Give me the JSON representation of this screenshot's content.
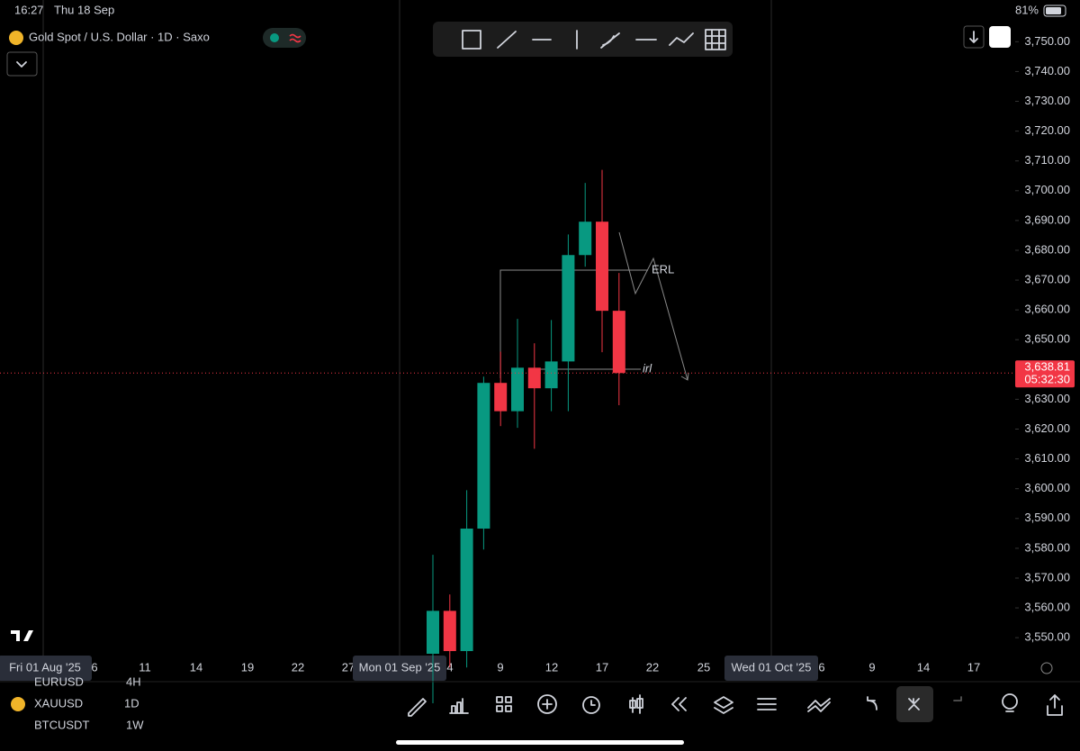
{
  "status_bar": {
    "time": "16:27",
    "date": "Thu 18 Sep",
    "battery": "81%"
  },
  "header": {
    "title": "Gold Spot / U.S. Dollar · 1D · Saxo"
  },
  "chart_data": {
    "type": "candlestick",
    "open": [
      3544.6,
      3559,
      3545.5,
      3586.6,
      3635.5,
      3626,
      3640.6,
      3633.7,
      3642.7,
      3678.4,
      3689.6,
      3659.7
    ],
    "high": [
      3577.8,
      3564.5,
      3599.5,
      3637.6,
      3646,
      3657,
      3648.8,
      3656.6,
      3685.3,
      3702.6,
      3707,
      3672.4
    ],
    "low": [
      3528,
      3540,
      3540,
      3579.6,
      3621,
      3620.4,
      3613.4,
      3626,
      3626,
      3674.5,
      3645.8,
      3628
    ],
    "close": [
      3559,
      3545.5,
      3586.6,
      3635.5,
      3626,
      3640.6,
      3633.7,
      3642.7,
      3678.4,
      3689.6,
      3659.7,
      3638.81
    ],
    "up_color": "#089981",
    "down_color": "#f23645",
    "ylim": [
      3544,
      3764
    ],
    "yticks": [
      {
        "value": 3550,
        "label": "3,550.00"
      },
      {
        "value": 3560,
        "label": "3,560.00"
      },
      {
        "value": 3570,
        "label": "3,570.00"
      },
      {
        "value": 3580,
        "label": "3,580.00"
      },
      {
        "value": 3590,
        "label": "3,590.00"
      },
      {
        "value": 3600,
        "label": "3,600.00"
      },
      {
        "value": 3610,
        "label": "3,610.00"
      },
      {
        "value": 3620,
        "label": "3,620.00"
      },
      {
        "value": 3630,
        "label": "3,630.00"
      },
      {
        "value": 3640,
        "label": "3,640.00"
      },
      {
        "value": 3650,
        "label": "3,650.00"
      },
      {
        "value": 3660,
        "label": "3,660.00"
      },
      {
        "value": 3670,
        "label": "3,670.00"
      },
      {
        "value": 3680,
        "label": "3,680.00"
      },
      {
        "value": 3690,
        "label": "3,690.00"
      },
      {
        "value": 3700,
        "label": "3,700.00"
      },
      {
        "value": 3710,
        "label": "3,710.00"
      },
      {
        "value": 3720,
        "label": "3,720.00"
      },
      {
        "value": 3730,
        "label": "3,730.00"
      },
      {
        "value": 3740,
        "label": "3,740.00"
      },
      {
        "value": 3750,
        "label": "3,750.00"
      }
    ],
    "xtick_labels": [
      "Fri 01 Aug '25",
      "6",
      "11",
      "14",
      "19",
      "22",
      "27",
      "Mon 01 Sep '25",
      "4",
      "9",
      "12",
      "17",
      "22",
      "25",
      "Wed 01 Oct '25",
      "6",
      "9",
      "14",
      "17"
    ],
    "last_price": {
      "value": 3638.81,
      "label": "3,638.81"
    },
    "countdown": "05:32:30",
    "annotations": [
      "ERL",
      "irl"
    ]
  },
  "footer": {
    "symbol": "XAUUSD",
    "interval": "1D",
    "faded": [
      "EURUSD",
      "4H",
      "BTCUSDT",
      "1W"
    ]
  }
}
